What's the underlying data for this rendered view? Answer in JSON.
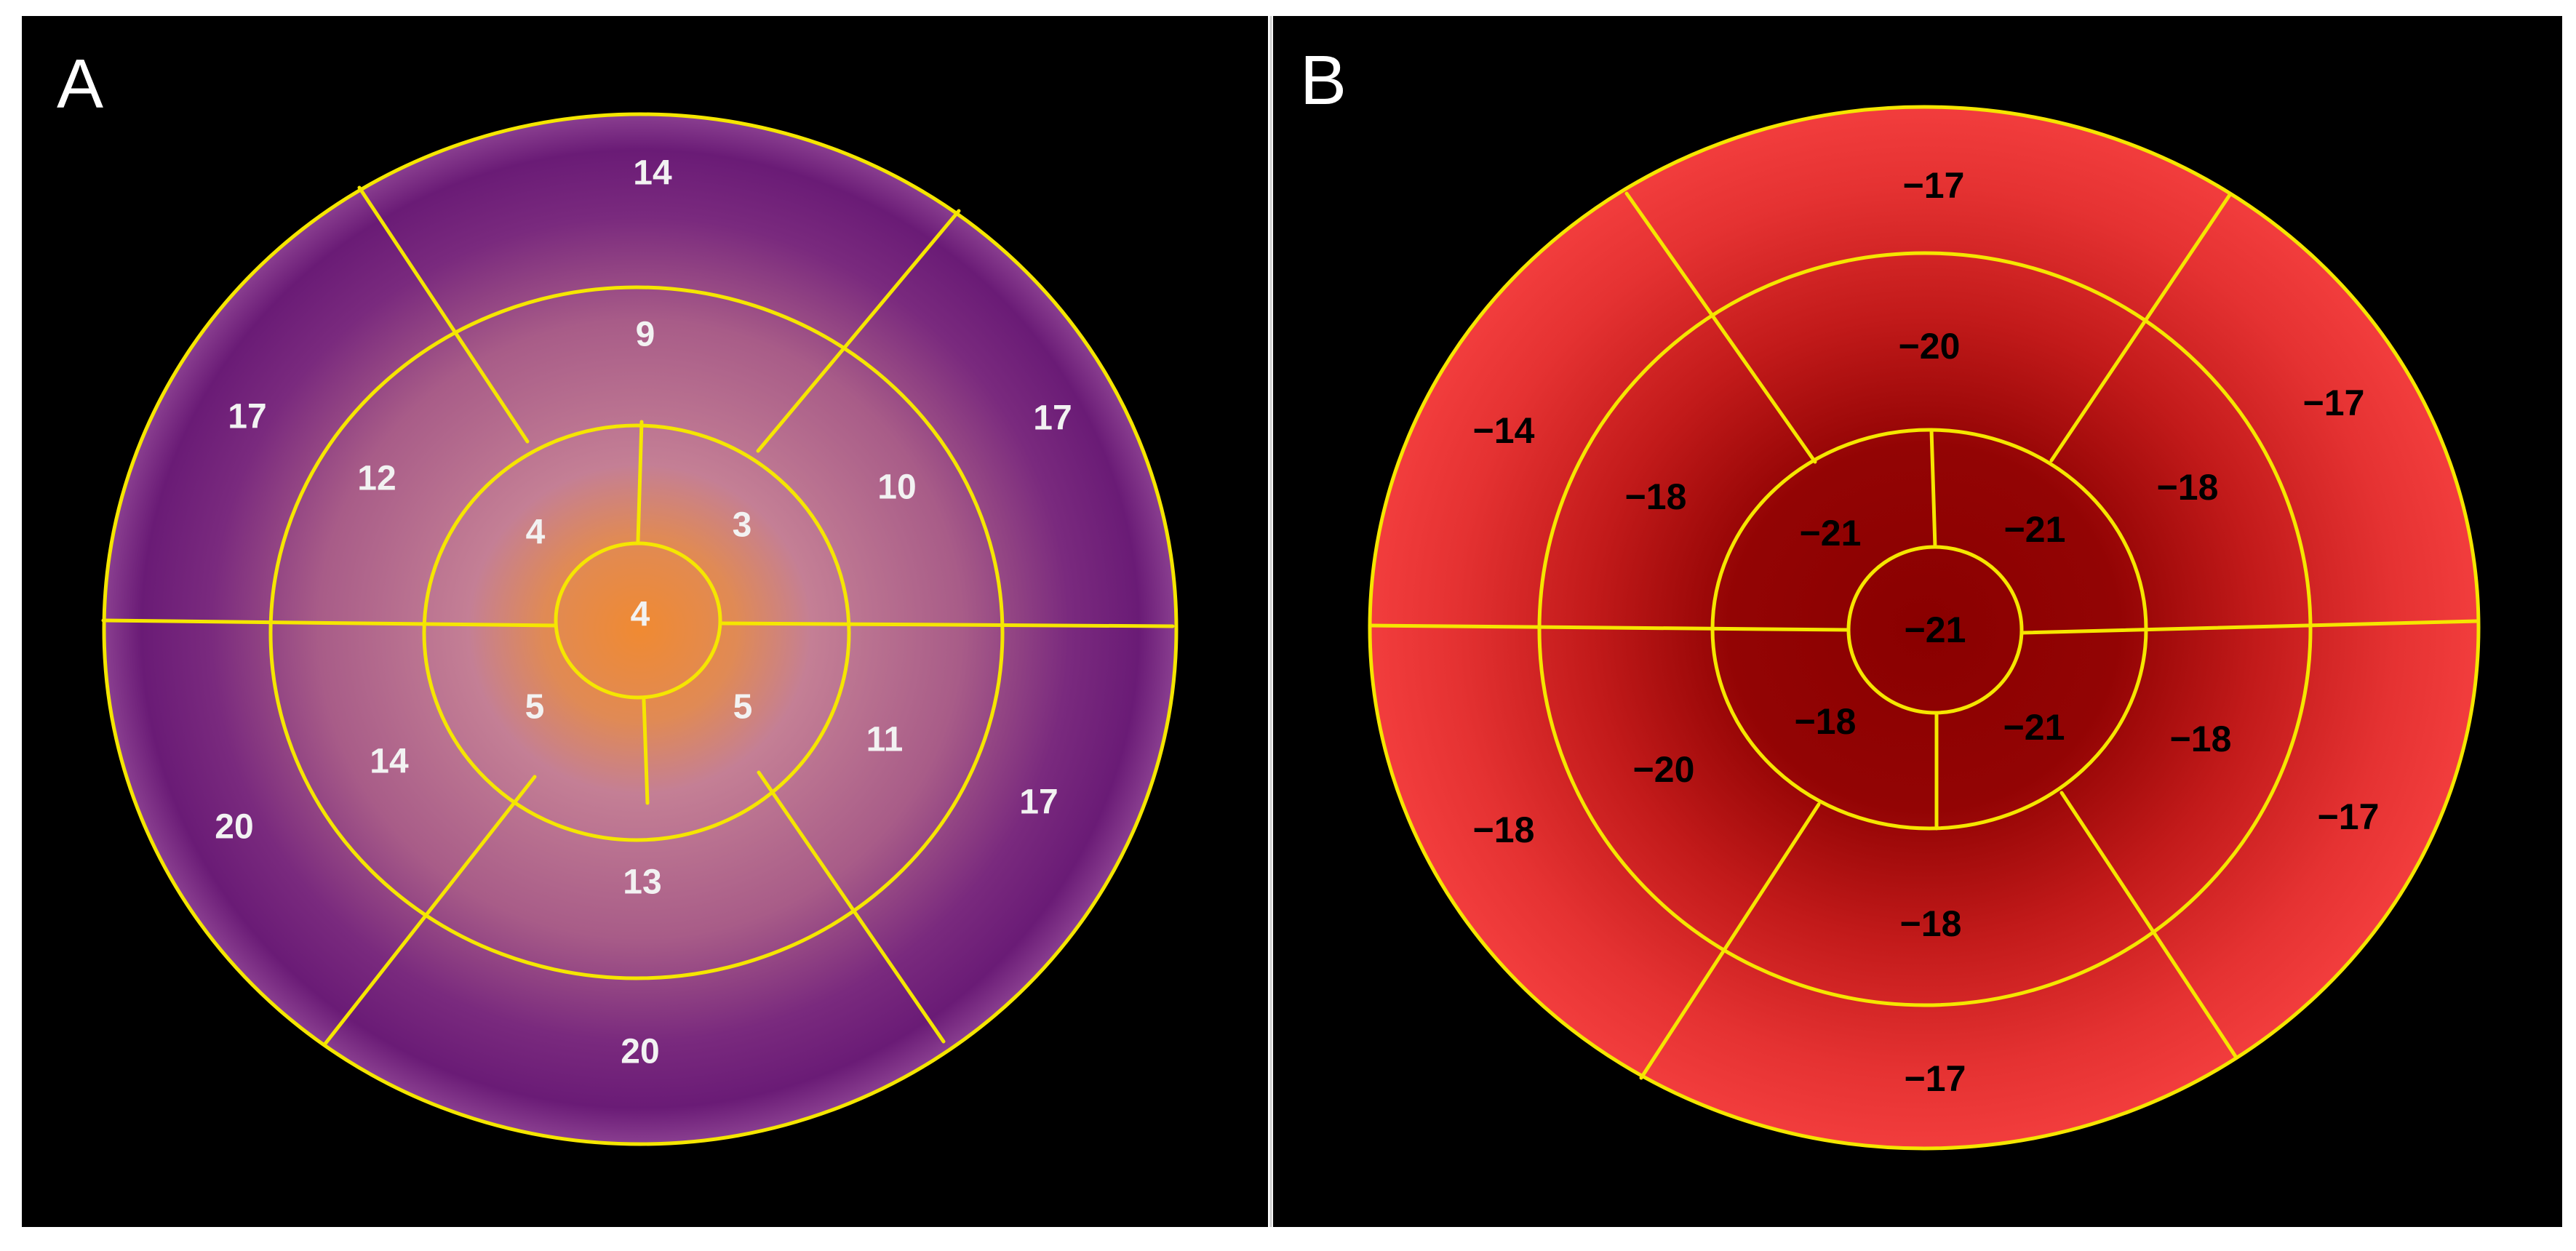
{
  "panels": [
    {
      "letter": "A",
      "colors": {
        "center": "#f08a32",
        "mid": "#b87090",
        "outer": "#6f1f78",
        "lines": "#f5e600"
      },
      "segments": {
        "basal": [
          "14",
          "17",
          "17",
          "20",
          "20",
          "17"
        ],
        "mid": [
          "9",
          "10",
          "11",
          "13",
          "14",
          "12"
        ],
        "apical": [
          "3",
          "5",
          "5",
          "4"
        ],
        "apex": "4"
      }
    },
    {
      "letter": "B",
      "colors": {
        "center": "#8a0000",
        "mid": "#c21a1a",
        "outer": "#f03a3a",
        "lines": "#f5e600"
      },
      "segments": {
        "basal": [
          "−17",
          "−17",
          "−17",
          "−17",
          "−18",
          "−14"
        ],
        "mid": [
          "−20",
          "−18",
          "−18",
          "−18",
          "−20",
          "−18"
        ],
        "apical": [
          "−21",
          "−21",
          "−18",
          "−21"
        ],
        "apex": "−21"
      }
    }
  ]
}
